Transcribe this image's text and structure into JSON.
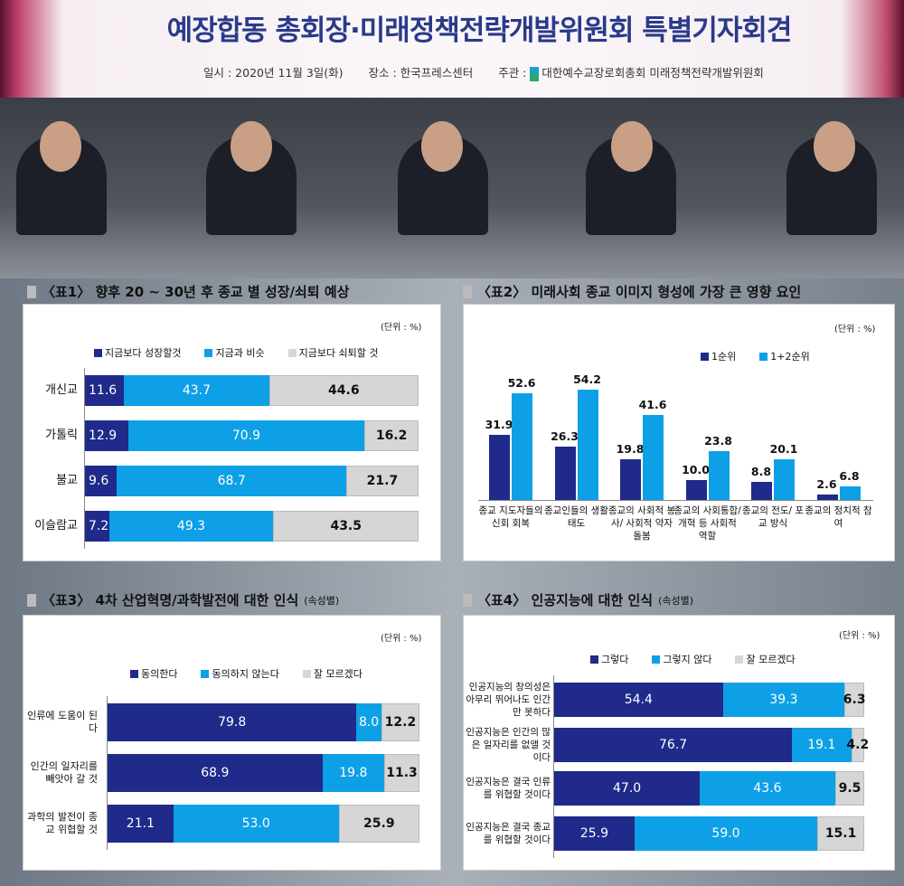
{
  "banner": {
    "title": "예장합동 총회장·미래정책전략개발위원회 특별기자회견",
    "date": "일시 : 2020년 11월 3일(화)",
    "place": "장소 : 한국프레스센터",
    "host_label": "주관 :",
    "host": "대한예수교장로회총회 미래정책전략개발위원회"
  },
  "colors": {
    "dark": "#1f2a8a",
    "light": "#0ea0e6",
    "grey": "#d6d6d6"
  },
  "chart_data": [
    {
      "id": "c1",
      "type": "bar",
      "orientation": "horizontal",
      "stacked": true,
      "title": "〈표1〉 향후 20 ~ 30년 후 종교 별 성장/쇠퇴 예상",
      "unit": "(단위 : %)",
      "categories": [
        "개신교",
        "가톨릭",
        "불교",
        "이슬람교"
      ],
      "series": [
        {
          "name": "지금보다 성장할것",
          "values": [
            11.6,
            12.9,
            9.6,
            7.2
          ]
        },
        {
          "name": "지금과 비슷",
          "values": [
            43.7,
            70.9,
            68.7,
            49.3
          ]
        },
        {
          "name": "지금보다 쇠퇴할 것",
          "values": [
            44.6,
            16.2,
            21.7,
            43.5
          ]
        }
      ]
    },
    {
      "id": "c2",
      "type": "bar",
      "title": "〈표2〉 미래사회 종교 이미지 형성에 가장 큰 영향 요인",
      "unit": "(단위 : %)",
      "categories": [
        "종교 지도자들의 신회 회복",
        "종교인들의 생활태도",
        "종교의 사회적 봉사/ 사회적 약자 돌봄",
        "종교의 사회통합/ 개혁 등 사회적 역할",
        "종교의 전도/ 포교 방식",
        "종교의 정치적 참여"
      ],
      "series": [
        {
          "name": "1순위",
          "values": [
            31.9,
            26.3,
            19.8,
            10.0,
            8.8,
            2.6
          ]
        },
        {
          "name": "1+2순위",
          "values": [
            52.6,
            54.2,
            41.6,
            23.8,
            20.1,
            6.8
          ]
        }
      ]
    },
    {
      "id": "c3",
      "type": "bar",
      "orientation": "horizontal",
      "stacked": true,
      "title": "〈표3〉 4차 산업혁명/과학발전에 대한 인식",
      "title_note": "(속성별)",
      "unit": "(단위 : %)",
      "categories": [
        "인류에 도움이 된다",
        "인간의 일자리를 빼앗아 갈 것",
        "과학의 발전이 종교 위협할 것"
      ],
      "series": [
        {
          "name": "동의한다",
          "values": [
            79.8,
            68.9,
            21.1
          ]
        },
        {
          "name": "동의하지 않는다",
          "values": [
            8.0,
            19.8,
            53.0
          ]
        },
        {
          "name": "잘 모르겠다",
          "values": [
            12.2,
            11.3,
            25.9
          ]
        }
      ]
    },
    {
      "id": "c4",
      "type": "bar",
      "orientation": "horizontal",
      "stacked": true,
      "title": "〈표4〉 인공지능에 대한 인식",
      "title_note": "(속성별)",
      "unit": "(단위 : %)",
      "categories": [
        "인공지능의 창의성은 아무리 뛰어나도 인간만 못하다",
        "인공지능은 인간의 많은 일자리를 없앨 것이다",
        "인공지능은 결국 인류를 위협할 것이다",
        "인공지능은 결국 종교를 위협할 것이다"
      ],
      "series": [
        {
          "name": "그렇다",
          "values": [
            54.4,
            76.7,
            47.0,
            25.9
          ]
        },
        {
          "name": "그렇지 않다",
          "values": [
            39.3,
            19.1,
            43.6,
            59.0
          ]
        },
        {
          "name": "잘 모르겠다",
          "values": [
            6.3,
            4.2,
            9.5,
            15.1
          ]
        }
      ]
    }
  ]
}
